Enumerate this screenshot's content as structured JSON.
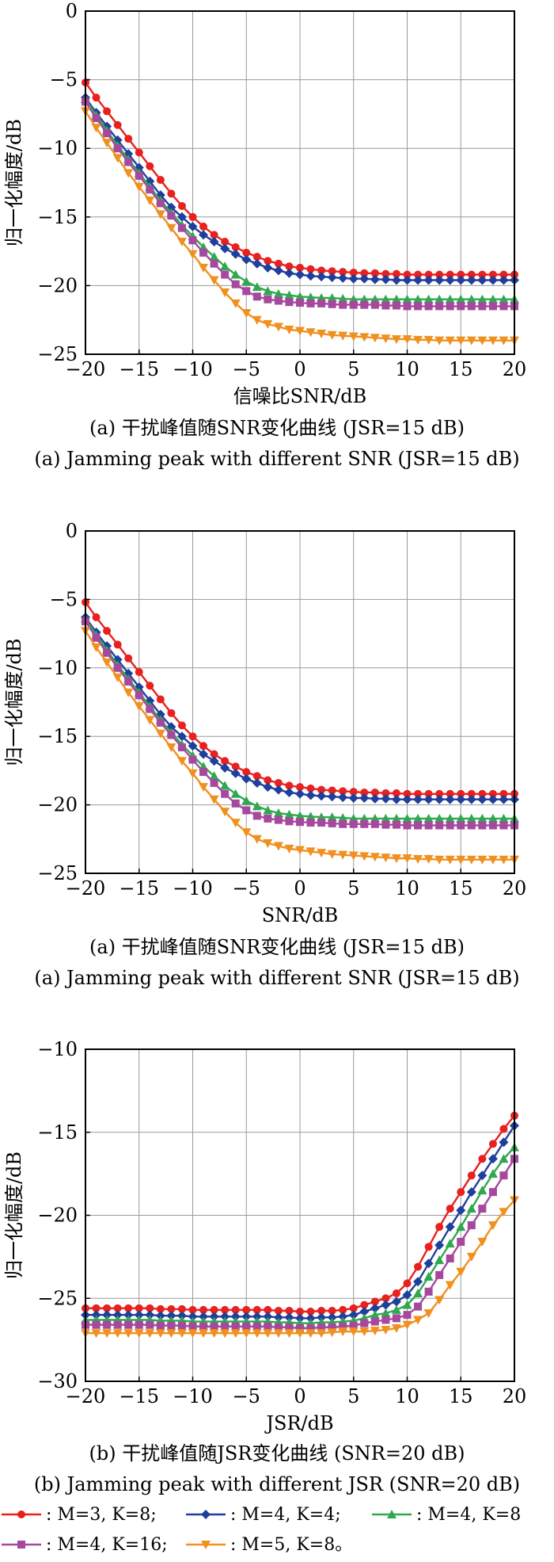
{
  "chart_data": [
    {
      "type": "line",
      "xlabel": "信噪比SNR/dB",
      "ylabel": "归一化幅度/dB",
      "caption_cn": "(a) 干扰峰值随SNR变化曲线 (JSR=15 dB)",
      "caption_en": "(a) Jamming peak with different SNR (JSR=15 dB)",
      "xlim": [
        -20,
        20
      ],
      "ylim": [
        -25,
        0
      ],
      "xticks": [
        -20,
        -15,
        -10,
        -5,
        0,
        5,
        10,
        15,
        20
      ],
      "yticks": [
        0,
        -5,
        -10,
        -15,
        -20,
        -25
      ],
      "grid": true,
      "x": [
        -20,
        -19,
        -18,
        -17,
        -16,
        -15,
        -14,
        -13,
        -12,
        -11,
        -10,
        -9,
        -8,
        -7,
        -6,
        -5,
        -4,
        -3,
        -2,
        -1,
        0,
        1,
        2,
        3,
        4,
        5,
        6,
        7,
        8,
        9,
        10,
        11,
        12,
        13,
        14,
        15,
        16,
        17,
        18,
        19,
        20
      ],
      "series": [
        {
          "legend": ": M=3, K=8;",
          "color": "#e8201e",
          "marker": "circle",
          "values": [
            -5.2,
            -6.3,
            -7.3,
            -8.3,
            -9.3,
            -10.3,
            -11.3,
            -12.3,
            -13.3,
            -14.2,
            -15.0,
            -15.7,
            -16.3,
            -16.8,
            -17.2,
            -17.6,
            -17.9,
            -18.2,
            -18.4,
            -18.6,
            -18.7,
            -18.8,
            -18.9,
            -18.95,
            -19.0,
            -19.05,
            -19.1,
            -19.1,
            -19.15,
            -19.15,
            -19.2,
            -19.2,
            -19.2,
            -19.2,
            -19.2,
            -19.2,
            -19.2,
            -19.2,
            -19.2,
            -19.2,
            -19.2
          ]
        },
        {
          "legend": ": M=4, K=4;",
          "color": "#1f3f9c",
          "marker": "diamond",
          "values": [
            -6.3,
            -7.4,
            -8.4,
            -9.4,
            -10.4,
            -11.4,
            -12.4,
            -13.4,
            -14.3,
            -15.0,
            -15.7,
            -16.3,
            -16.8,
            -17.3,
            -17.7,
            -18.1,
            -18.4,
            -18.7,
            -18.9,
            -19.1,
            -19.2,
            -19.3,
            -19.35,
            -19.4,
            -19.45,
            -19.5,
            -19.5,
            -19.55,
            -19.55,
            -19.6,
            -19.6,
            -19.6,
            -19.6,
            -19.6,
            -19.6,
            -19.6,
            -19.6,
            -19.6,
            -19.6,
            -19.6,
            -19.6
          ]
        },
        {
          "legend": ": M=4, K=8",
          "color": "#2fa84f",
          "marker": "triangle-up",
          "values": [
            -6.4,
            -7.6,
            -8.7,
            -9.8,
            -10.8,
            -11.8,
            -12.8,
            -13.8,
            -14.7,
            -15.6,
            -16.4,
            -17.2,
            -17.9,
            -18.6,
            -19.2,
            -19.7,
            -20.1,
            -20.4,
            -20.6,
            -20.7,
            -20.8,
            -20.85,
            -20.9,
            -20.9,
            -20.95,
            -21.0,
            -21.0,
            -21.0,
            -21.0,
            -21.0,
            -21.0,
            -21.0,
            -21.0,
            -21.0,
            -21.0,
            -21.0,
            -21.0,
            -21.0,
            -21.0,
            -21.0,
            -21.0
          ]
        },
        {
          "legend": ": M=4, K=16;",
          "color": "#a6489e",
          "marker": "square",
          "values": [
            -6.6,
            -7.8,
            -8.9,
            -10.0,
            -11.0,
            -12.0,
            -13.0,
            -14.0,
            -14.9,
            -15.8,
            -16.7,
            -17.6,
            -18.4,
            -19.2,
            -19.9,
            -20.4,
            -20.8,
            -21.0,
            -21.1,
            -21.2,
            -21.25,
            -21.3,
            -21.3,
            -21.35,
            -21.4,
            -21.4,
            -21.4,
            -21.4,
            -21.45,
            -21.45,
            -21.5,
            -21.5,
            -21.5,
            -21.5,
            -21.5,
            -21.5,
            -21.5,
            -21.5,
            -21.5,
            -21.5,
            -21.5
          ]
        },
        {
          "legend": ": M=5, K=8。",
          "color": "#f0901e",
          "marker": "triangle-down",
          "values": [
            -7.3,
            -8.5,
            -9.6,
            -10.7,
            -11.8,
            -12.8,
            -13.8,
            -14.8,
            -15.8,
            -16.8,
            -17.7,
            -18.7,
            -19.6,
            -20.5,
            -21.3,
            -22.0,
            -22.5,
            -22.8,
            -23.0,
            -23.2,
            -23.3,
            -23.4,
            -23.5,
            -23.6,
            -23.65,
            -23.7,
            -23.75,
            -23.8,
            -23.85,
            -23.9,
            -23.9,
            -23.95,
            -23.95,
            -24.0,
            -24.0,
            -24.0,
            -24.0,
            -24.0,
            -24.0,
            -24.0,
            -24.0
          ]
        }
      ]
    },
    {
      "type": "line",
      "xlabel": "SNR/dB",
      "ylabel": "归一化幅度/dB",
      "caption_cn": "(a) 干扰峰值随SNR变化曲线 (JSR=15 dB)",
      "caption_en": "(a) Jamming peak with different SNR (JSR=15 dB)",
      "xlim": [
        -20,
        20
      ],
      "ylim": [
        -25,
        0
      ],
      "xticks": [
        -20,
        -15,
        -10,
        -5,
        0,
        5,
        10,
        15,
        20
      ],
      "yticks": [
        0,
        -5,
        -10,
        -15,
        -20,
        -25
      ],
      "grid": true,
      "x": [
        -20,
        -19,
        -18,
        -17,
        -16,
        -15,
        -14,
        -13,
        -12,
        -11,
        -10,
        -9,
        -8,
        -7,
        -6,
        -5,
        -4,
        -3,
        -2,
        -1,
        0,
        1,
        2,
        3,
        4,
        5,
        6,
        7,
        8,
        9,
        10,
        11,
        12,
        13,
        14,
        15,
        16,
        17,
        18,
        19,
        20
      ],
      "series": [
        {
          "legend": ": M=3, K=8;",
          "color": "#e8201e",
          "marker": "circle",
          "values": [
            -5.2,
            -6.3,
            -7.3,
            -8.3,
            -9.3,
            -10.3,
            -11.3,
            -12.3,
            -13.3,
            -14.2,
            -15.0,
            -15.7,
            -16.3,
            -16.8,
            -17.2,
            -17.6,
            -17.9,
            -18.2,
            -18.4,
            -18.6,
            -18.7,
            -18.8,
            -18.9,
            -18.95,
            -19.0,
            -19.05,
            -19.1,
            -19.1,
            -19.15,
            -19.15,
            -19.2,
            -19.2,
            -19.2,
            -19.2,
            -19.2,
            -19.2,
            -19.2,
            -19.2,
            -19.2,
            -19.2,
            -19.2
          ]
        },
        {
          "legend": ": M=4, K=4;",
          "color": "#1f3f9c",
          "marker": "diamond",
          "values": [
            -6.3,
            -7.4,
            -8.4,
            -9.4,
            -10.4,
            -11.4,
            -12.4,
            -13.4,
            -14.3,
            -15.0,
            -15.7,
            -16.3,
            -16.8,
            -17.3,
            -17.7,
            -18.1,
            -18.4,
            -18.7,
            -18.9,
            -19.1,
            -19.2,
            -19.3,
            -19.35,
            -19.4,
            -19.45,
            -19.5,
            -19.5,
            -19.55,
            -19.55,
            -19.6,
            -19.6,
            -19.6,
            -19.6,
            -19.6,
            -19.6,
            -19.6,
            -19.6,
            -19.6,
            -19.6,
            -19.6,
            -19.6
          ]
        },
        {
          "legend": ": M=4, K=8",
          "color": "#2fa84f",
          "marker": "triangle-up",
          "values": [
            -6.4,
            -7.6,
            -8.7,
            -9.8,
            -10.8,
            -11.8,
            -12.8,
            -13.8,
            -14.7,
            -15.6,
            -16.4,
            -17.2,
            -17.9,
            -18.6,
            -19.2,
            -19.7,
            -20.1,
            -20.4,
            -20.6,
            -20.7,
            -20.8,
            -20.85,
            -20.9,
            -20.9,
            -20.95,
            -21.0,
            -21.0,
            -21.0,
            -21.0,
            -21.0,
            -21.0,
            -21.0,
            -21.0,
            -21.0,
            -21.0,
            -21.0,
            -21.0,
            -21.0,
            -21.0,
            -21.0,
            -21.0
          ]
        },
        {
          "legend": ": M=4, K=16;",
          "color": "#a6489e",
          "marker": "square",
          "values": [
            -6.6,
            -7.8,
            -8.9,
            -10.0,
            -11.0,
            -12.0,
            -13.0,
            -14.0,
            -14.9,
            -15.8,
            -16.7,
            -17.6,
            -18.4,
            -19.2,
            -19.9,
            -20.4,
            -20.8,
            -21.0,
            -21.1,
            -21.2,
            -21.25,
            -21.3,
            -21.3,
            -21.35,
            -21.4,
            -21.4,
            -21.4,
            -21.4,
            -21.45,
            -21.45,
            -21.5,
            -21.5,
            -21.5,
            -21.5,
            -21.5,
            -21.5,
            -21.5,
            -21.5,
            -21.5,
            -21.5,
            -21.5
          ]
        },
        {
          "legend": ": M=5, K=8。",
          "color": "#f0901e",
          "marker": "triangle-down",
          "values": [
            -7.3,
            -8.5,
            -9.6,
            -10.7,
            -11.8,
            -12.8,
            -13.8,
            -14.8,
            -15.8,
            -16.8,
            -17.7,
            -18.7,
            -19.6,
            -20.5,
            -21.3,
            -22.0,
            -22.5,
            -22.8,
            -23.0,
            -23.2,
            -23.3,
            -23.4,
            -23.5,
            -23.6,
            -23.65,
            -23.7,
            -23.75,
            -23.8,
            -23.85,
            -23.9,
            -23.9,
            -23.95,
            -23.95,
            -24.0,
            -24.0,
            -24.0,
            -24.0,
            -24.0,
            -24.0,
            -24.0,
            -24.0
          ]
        }
      ]
    },
    {
      "type": "line",
      "xlabel": "JSR/dB",
      "ylabel": "归一化幅度/dB",
      "caption_cn": "(b) 干扰峰值随JSR变化曲线 (SNR=20 dB)",
      "caption_en": "(b) Jamming peak with different JSR (SNR=20 dB)",
      "xlim": [
        -20,
        20
      ],
      "ylim": [
        -30,
        -10
      ],
      "xticks": [
        -20,
        -15,
        -10,
        -5,
        0,
        5,
        10,
        15,
        20
      ],
      "yticks": [
        -10,
        -15,
        -20,
        -25,
        -30
      ],
      "grid": true,
      "x": [
        -20,
        -19,
        -18,
        -17,
        -16,
        -15,
        -14,
        -13,
        -12,
        -11,
        -10,
        -9,
        -8,
        -7,
        -6,
        -5,
        -4,
        -3,
        -2,
        -1,
        0,
        1,
        2,
        3,
        4,
        5,
        6,
        7,
        8,
        9,
        10,
        11,
        12,
        13,
        14,
        15,
        16,
        17,
        18,
        19,
        20
      ],
      "series": [
        {
          "legend": ": M=3, K=8;",
          "color": "#e8201e",
          "marker": "circle",
          "values": [
            -25.6,
            -25.6,
            -25.6,
            -25.6,
            -25.6,
            -25.6,
            -25.6,
            -25.65,
            -25.65,
            -25.65,
            -25.7,
            -25.7,
            -25.7,
            -25.7,
            -25.7,
            -25.7,
            -25.7,
            -25.7,
            -25.75,
            -25.75,
            -25.8,
            -25.8,
            -25.75,
            -25.75,
            -25.7,
            -25.6,
            -25.4,
            -25.2,
            -25.0,
            -24.7,
            -24.1,
            -23.1,
            -21.9,
            -20.7,
            -19.6,
            -18.6,
            -17.6,
            -16.6,
            -15.7,
            -14.8,
            -14.0
          ]
        },
        {
          "legend": ": M=4, K=4;",
          "color": "#1f3f9c",
          "marker": "diamond",
          "values": [
            -26.0,
            -26.0,
            -26.0,
            -26.0,
            -26.0,
            -26.0,
            -26.0,
            -26.05,
            -26.05,
            -26.05,
            -26.1,
            -26.1,
            -26.1,
            -26.1,
            -26.1,
            -26.1,
            -26.1,
            -26.1,
            -26.15,
            -26.15,
            -26.2,
            -26.2,
            -26.15,
            -26.15,
            -26.1,
            -26.0,
            -25.8,
            -25.6,
            -25.4,
            -25.2,
            -24.8,
            -24.0,
            -22.9,
            -21.8,
            -20.7,
            -19.7,
            -18.6,
            -17.6,
            -16.6,
            -15.6,
            -14.6
          ]
        },
        {
          "legend": ": M=4, K=8",
          "color": "#2fa84f",
          "marker": "triangle-up",
          "values": [
            -26.3,
            -26.3,
            -26.3,
            -26.3,
            -26.3,
            -26.3,
            -26.3,
            -26.35,
            -26.35,
            -26.35,
            -26.4,
            -26.4,
            -26.4,
            -26.4,
            -26.4,
            -26.4,
            -26.4,
            -26.4,
            -26.45,
            -26.45,
            -26.5,
            -26.5,
            -26.45,
            -26.45,
            -26.4,
            -26.35,
            -26.2,
            -26.0,
            -25.9,
            -25.7,
            -25.4,
            -24.7,
            -23.7,
            -22.7,
            -21.7,
            -20.7,
            -19.6,
            -18.5,
            -17.5,
            -16.6,
            -15.9
          ]
        },
        {
          "legend": ": M=4, K=16;",
          "color": "#a6489e",
          "marker": "square",
          "values": [
            -26.6,
            -26.6,
            -26.6,
            -26.6,
            -26.6,
            -26.6,
            -26.6,
            -26.65,
            -26.65,
            -26.65,
            -26.7,
            -26.7,
            -26.7,
            -26.7,
            -26.7,
            -26.7,
            -26.7,
            -26.7,
            -26.75,
            -26.75,
            -26.8,
            -26.8,
            -26.75,
            -26.75,
            -26.7,
            -26.65,
            -26.5,
            -26.4,
            -26.3,
            -26.2,
            -26.0,
            -25.5,
            -24.6,
            -23.6,
            -22.6,
            -21.6,
            -20.6,
            -19.6,
            -18.6,
            -17.6,
            -16.6
          ]
        },
        {
          "legend": ": M=5, K=8。",
          "color": "#f0901e",
          "marker": "triangle-down",
          "values": [
            -27.1,
            -27.1,
            -27.1,
            -27.1,
            -27.1,
            -27.1,
            -27.1,
            -27.1,
            -27.1,
            -27.1,
            -27.1,
            -27.1,
            -27.1,
            -27.1,
            -27.1,
            -27.1,
            -27.1,
            -27.1,
            -27.1,
            -27.1,
            -27.1,
            -27.1,
            -27.1,
            -27.05,
            -27.0,
            -27.0,
            -27.0,
            -26.95,
            -26.9,
            -26.8,
            -26.6,
            -26.3,
            -25.9,
            -25.1,
            -24.2,
            -23.4,
            -22.5,
            -21.6,
            -20.6,
            -19.8,
            -19.1
          ]
        }
      ]
    }
  ]
}
